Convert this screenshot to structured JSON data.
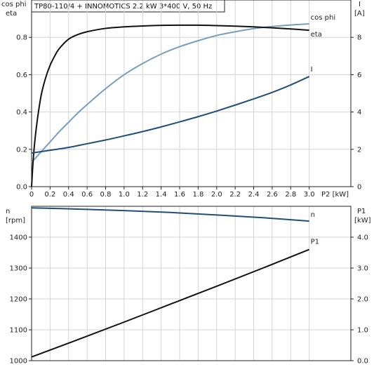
{
  "title": "TP80-110/4 + INNOMOTICS   2.2 kW   3*400 V, 50 Hz",
  "colors": {
    "eta": "#111111",
    "cosphi": "#7a9cbd",
    "current": "#1f4e79",
    "speed": "#1f4e79",
    "p1": "#111111",
    "axis": "#222222",
    "grid": "#d4d4d4"
  },
  "chart_data": [
    {
      "type": "line",
      "xlabel": "P2 [kW]",
      "x_ticks": [
        "0",
        "0.2",
        "0.4",
        "0.6",
        "0.8",
        "1.0",
        "1.2",
        "1.4",
        "1.6",
        "1.8",
        "2.0",
        "2.2",
        "2.4",
        "2.6",
        "2.8",
        "3.0"
      ],
      "xlim": [
        0,
        3.45
      ],
      "ylabel_left": [
        "cos phi",
        "eta"
      ],
      "ylim_left": [
        0,
        1.0
      ],
      "y_ticks_left": [
        "0.0",
        "0.2",
        "0.4",
        "0.6",
        "0.8"
      ],
      "ylabel_right": [
        "I",
        "[A]"
      ],
      "ylim_right": [
        0,
        10
      ],
      "y_ticks_right": [
        "0",
        "2",
        "4",
        "6",
        "8"
      ],
      "grid": true,
      "series": [
        {
          "name": "cos phi",
          "axis": "left",
          "x": [
            0,
            0.1,
            0.2,
            0.3,
            0.4,
            0.5,
            0.6,
            0.8,
            1.0,
            1.2,
            1.4,
            1.6,
            1.8,
            2.0,
            2.2,
            2.4,
            2.6,
            2.8,
            3.0
          ],
          "values": [
            0.13,
            0.185,
            0.24,
            0.295,
            0.345,
            0.395,
            0.44,
            0.525,
            0.6,
            0.66,
            0.71,
            0.75,
            0.782,
            0.81,
            0.83,
            0.847,
            0.858,
            0.866,
            0.872
          ]
        },
        {
          "name": "eta",
          "axis": "left",
          "x": [
            0,
            0.02,
            0.05,
            0.1,
            0.15,
            0.2,
            0.25,
            0.3,
            0.4,
            0.5,
            0.6,
            0.8,
            1.0,
            1.2,
            1.4,
            1.6,
            1.8,
            2.0,
            2.2,
            2.4,
            2.6,
            2.8,
            3.0
          ],
          "values": [
            0.0,
            0.16,
            0.31,
            0.48,
            0.58,
            0.65,
            0.7,
            0.74,
            0.79,
            0.815,
            0.83,
            0.848,
            0.856,
            0.861,
            0.864,
            0.865,
            0.865,
            0.863,
            0.86,
            0.856,
            0.851,
            0.845,
            0.838
          ]
        },
        {
          "name": "I",
          "axis": "right",
          "x": [
            0,
            0.2,
            0.4,
            0.6,
            0.8,
            1.0,
            1.2,
            1.4,
            1.6,
            1.8,
            2.0,
            2.2,
            2.4,
            2.6,
            2.8,
            3.0
          ],
          "values": [
            1.8,
            1.95,
            2.1,
            2.3,
            2.5,
            2.72,
            2.95,
            3.2,
            3.47,
            3.75,
            4.05,
            4.37,
            4.7,
            5.05,
            5.45,
            5.9
          ]
        }
      ]
    },
    {
      "type": "line",
      "xlim": [
        0,
        3.45
      ],
      "ylabel_left": [
        "n",
        "[rpm]"
      ],
      "ylim_left": [
        1000,
        1500
      ],
      "y_ticks_left": [
        "1000",
        "1100",
        "1200",
        "1300",
        "1400"
      ],
      "ylabel_right": [
        "P1",
        "[kW]"
      ],
      "ylim_right": [
        0,
        5.0
      ],
      "y_ticks_right": [
        "0.0",
        "1.0",
        "2.0",
        "3.0",
        "4.0"
      ],
      "grid": true,
      "series": [
        {
          "name": "n",
          "axis": "left",
          "x": [
            0,
            0.5,
            1.0,
            1.5,
            2.0,
            2.5,
            3.0
          ],
          "values": [
            1495,
            1491,
            1486,
            1480,
            1472,
            1463,
            1452
          ]
        },
        {
          "name": "P1",
          "axis": "right",
          "x": [
            0,
            0.5,
            1.0,
            1.5,
            2.0,
            2.5,
            3.0
          ],
          "values": [
            0.12,
            0.68,
            1.25,
            1.83,
            2.41,
            3.0,
            3.6
          ]
        }
      ]
    }
  ]
}
